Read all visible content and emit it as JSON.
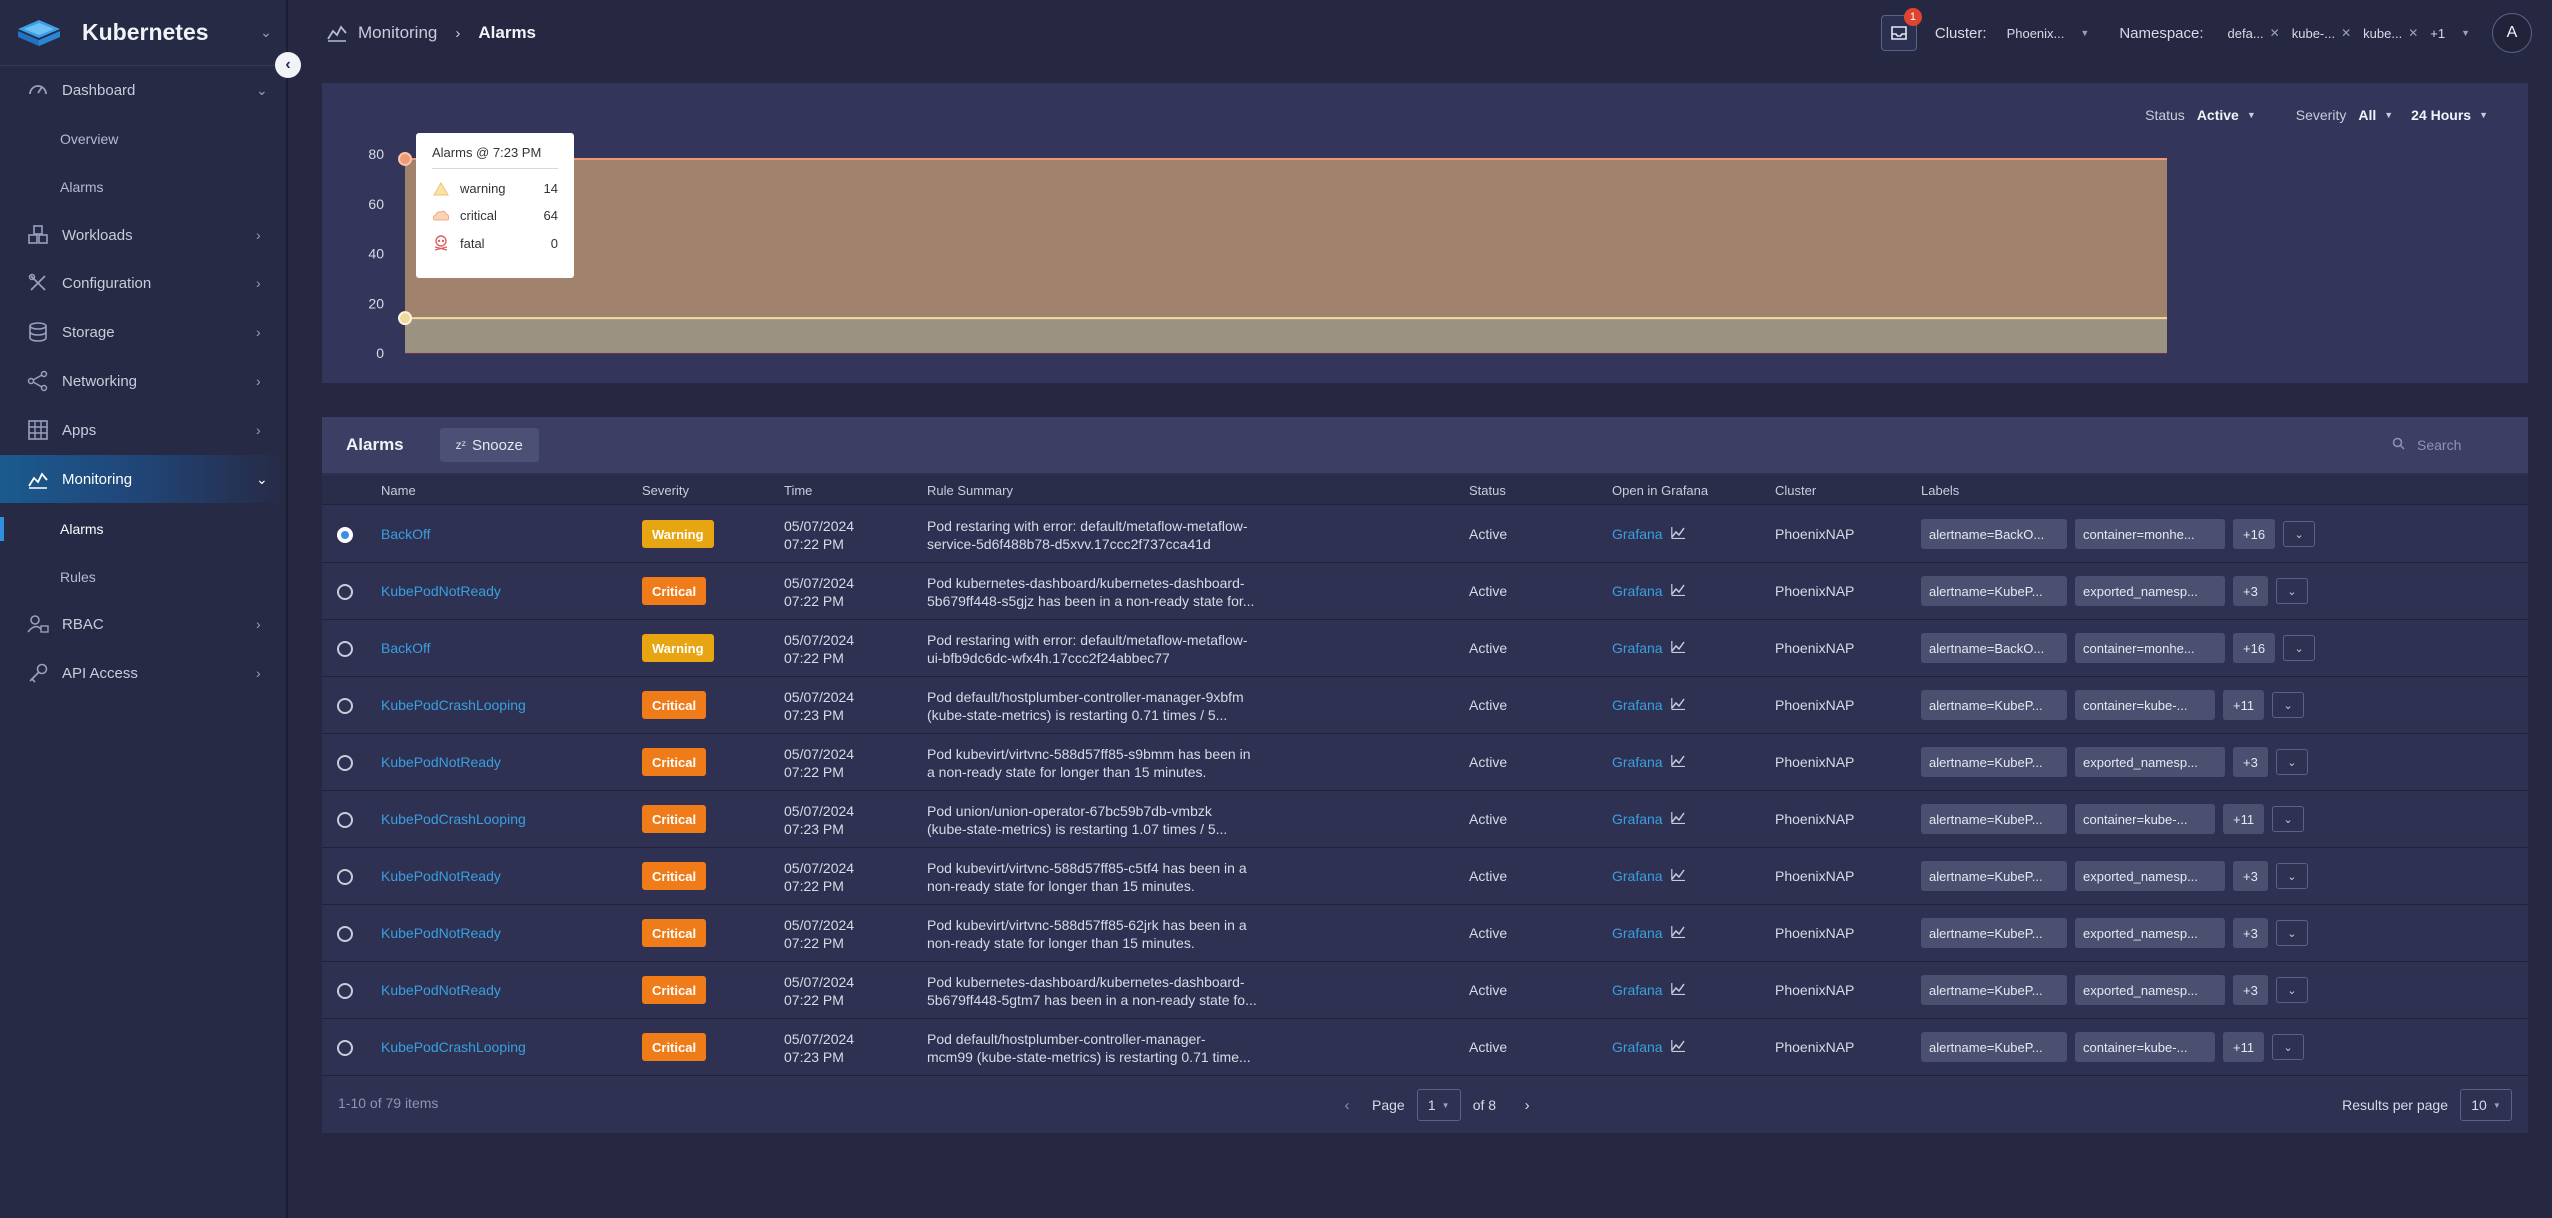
{
  "app": {
    "title": "Kubernetes"
  },
  "sidebar": {
    "items": [
      {
        "label": "Dashboard",
        "icon": "gauge-icon",
        "expanded": true,
        "children": [
          {
            "label": "Overview"
          },
          {
            "label": "Alarms"
          }
        ]
      },
      {
        "label": "Workloads",
        "icon": "cubes-icon"
      },
      {
        "label": "Configuration",
        "icon": "tools-icon"
      },
      {
        "label": "Storage",
        "icon": "database-icon"
      },
      {
        "label": "Networking",
        "icon": "network-icon"
      },
      {
        "label": "Apps",
        "icon": "grid-icon"
      },
      {
        "label": "Monitoring",
        "icon": "monitoring-icon",
        "active": true,
        "expanded": true,
        "children": [
          {
            "label": "Alarms",
            "active": true
          },
          {
            "label": "Rules"
          }
        ]
      },
      {
        "label": "RBAC",
        "icon": "users-lock-icon"
      },
      {
        "label": "API Access",
        "icon": "key-icon"
      }
    ]
  },
  "breadcrumb": {
    "section": "Monitoring",
    "current": "Alarms"
  },
  "topbar": {
    "notification_count": "1",
    "cluster_label": "Cluster:",
    "cluster_value": "Phoenix...",
    "namespace_label": "Namespace:",
    "namespaces": [
      "defa...",
      "kube-...",
      "kube..."
    ],
    "namespaces_more": "+1",
    "avatar_initial": "A"
  },
  "filters": {
    "status_label": "Status",
    "status_value": "Active",
    "severity_label": "Severity",
    "severity_value": "All",
    "range_value": "24 Hours"
  },
  "chart_data": {
    "type": "area",
    "y_ticks": [
      "80",
      "60",
      "40",
      "20",
      "0"
    ],
    "ylim": [
      0,
      80
    ],
    "series": [
      {
        "name": "warning",
        "color": "#f0c070",
        "values": [
          14,
          14,
          14,
          14,
          14,
          14
        ]
      },
      {
        "name": "critical",
        "color": "#f09a74",
        "values": [
          64,
          64,
          64,
          64,
          64,
          64
        ]
      },
      {
        "name": "fatal",
        "color": "#e06060",
        "values": [
          0,
          0,
          0,
          0,
          0,
          0
        ]
      }
    ],
    "tooltip": {
      "title": "Alarms @ 7:23 PM",
      "rows": [
        {
          "name": "warning",
          "value": "14",
          "icon": "warning-icon"
        },
        {
          "name": "critical",
          "value": "64",
          "icon": "critical-icon"
        },
        {
          "name": "fatal",
          "value": "0",
          "icon": "skull-icon"
        }
      ]
    }
  },
  "alarms_table": {
    "title": "Alarms",
    "snooze_label": "Snooze",
    "search_placeholder": "Search",
    "columns": [
      "Name",
      "Severity",
      "Time",
      "Rule Summary",
      "Status",
      "Open in Grafana",
      "Cluster",
      "Labels"
    ],
    "rows": [
      {
        "selected": true,
        "name": "BackOff",
        "severity": "Warning",
        "date": "05/07/2024",
        "time": "07:22 PM",
        "summary": [
          "Pod restaring with error: default/metaflow-metaflow-",
          "service-5d6f488b78-d5xvv.17ccc2f737cca41d"
        ],
        "status": "Active",
        "grafana": "Grafana",
        "cluster": "PhoenixNAP",
        "labels": [
          "alertname=BackO...",
          "container=monhe..."
        ],
        "more": "+16"
      },
      {
        "selected": false,
        "name": "KubePodNotReady",
        "severity": "Critical",
        "date": "05/07/2024",
        "time": "07:22 PM",
        "summary": [
          "Pod kubernetes-dashboard/kubernetes-dashboard-",
          "5b679ff448-s5gjz has been in a non-ready state for..."
        ],
        "status": "Active",
        "grafana": "Grafana",
        "cluster": "PhoenixNAP",
        "labels": [
          "alertname=KubeP...",
          "exported_namesp..."
        ],
        "more": "+3"
      },
      {
        "selected": false,
        "name": "BackOff",
        "severity": "Warning",
        "date": "05/07/2024",
        "time": "07:22 PM",
        "summary": [
          "Pod restaring with error: default/metaflow-metaflow-",
          "ui-bfb9dc6dc-wfx4h.17ccc2f24abbec77"
        ],
        "status": "Active",
        "grafana": "Grafana",
        "cluster": "PhoenixNAP",
        "labels": [
          "alertname=BackO...",
          "container=monhe..."
        ],
        "more": "+16"
      },
      {
        "selected": false,
        "name": "KubePodCrashLooping",
        "severity": "Critical",
        "date": "05/07/2024",
        "time": "07:23 PM",
        "summary": [
          "Pod default/hostplumber-controller-manager-9xbfm",
          "(kube-state-metrics) is restarting 0.71 times / 5..."
        ],
        "status": "Active",
        "grafana": "Grafana",
        "cluster": "PhoenixNAP",
        "labels": [
          "alertname=KubeP...",
          "container=kube-..."
        ],
        "more": "+11"
      },
      {
        "selected": false,
        "name": "KubePodNotReady",
        "severity": "Critical",
        "date": "05/07/2024",
        "time": "07:22 PM",
        "summary": [
          "Pod kubevirt/virtvnc-588d57ff85-s9bmm has been in",
          "a non-ready state for longer than 15 minutes."
        ],
        "status": "Active",
        "grafana": "Grafana",
        "cluster": "PhoenixNAP",
        "labels": [
          "alertname=KubeP...",
          "exported_namesp..."
        ],
        "more": "+3"
      },
      {
        "selected": false,
        "name": "KubePodCrashLooping",
        "severity": "Critical",
        "date": "05/07/2024",
        "time": "07:23 PM",
        "summary": [
          "Pod union/union-operator-67bc59b7db-vmbzk",
          "(kube-state-metrics) is restarting 1.07 times / 5..."
        ],
        "status": "Active",
        "grafana": "Grafana",
        "cluster": "PhoenixNAP",
        "labels": [
          "alertname=KubeP...",
          "container=kube-..."
        ],
        "more": "+11"
      },
      {
        "selected": false,
        "name": "KubePodNotReady",
        "severity": "Critical",
        "date": "05/07/2024",
        "time": "07:22 PM",
        "summary": [
          "Pod kubevirt/virtvnc-588d57ff85-c5tf4 has been in a",
          "non-ready state for longer than 15 minutes."
        ],
        "status": "Active",
        "grafana": "Grafana",
        "cluster": "PhoenixNAP",
        "labels": [
          "alertname=KubeP...",
          "exported_namesp..."
        ],
        "more": "+3"
      },
      {
        "selected": false,
        "name": "KubePodNotReady",
        "severity": "Critical",
        "date": "05/07/2024",
        "time": "07:22 PM",
        "summary": [
          "Pod kubevirt/virtvnc-588d57ff85-62jrk has been in a",
          "non-ready state for longer than 15 minutes."
        ],
        "status": "Active",
        "grafana": "Grafana",
        "cluster": "PhoenixNAP",
        "labels": [
          "alertname=KubeP...",
          "exported_namesp..."
        ],
        "more": "+3"
      },
      {
        "selected": false,
        "name": "KubePodNotReady",
        "severity": "Critical",
        "date": "05/07/2024",
        "time": "07:22 PM",
        "summary": [
          "Pod kubernetes-dashboard/kubernetes-dashboard-",
          "5b679ff448-5gtm7 has been in a non-ready state fo..."
        ],
        "status": "Active",
        "grafana": "Grafana",
        "cluster": "PhoenixNAP",
        "labels": [
          "alertname=KubeP...",
          "exported_namesp..."
        ],
        "more": "+3"
      },
      {
        "selected": false,
        "name": "KubePodCrashLooping",
        "severity": "Critical",
        "date": "05/07/2024",
        "time": "07:23 PM",
        "summary": [
          "Pod default/hostplumber-controller-manager-",
          "mcm99 (kube-state-metrics) is restarting 0.71 time..."
        ],
        "status": "Active",
        "grafana": "Grafana",
        "cluster": "PhoenixNAP",
        "labels": [
          "alertname=KubeP...",
          "container=kube-..."
        ],
        "more": "+11"
      }
    ],
    "footer": {
      "items_text": "1-10 of 79 items",
      "page_label": "Page",
      "page_value": "1",
      "of_text": "of 8",
      "rpp_label": "Results per page",
      "rpp_value": "10"
    }
  }
}
